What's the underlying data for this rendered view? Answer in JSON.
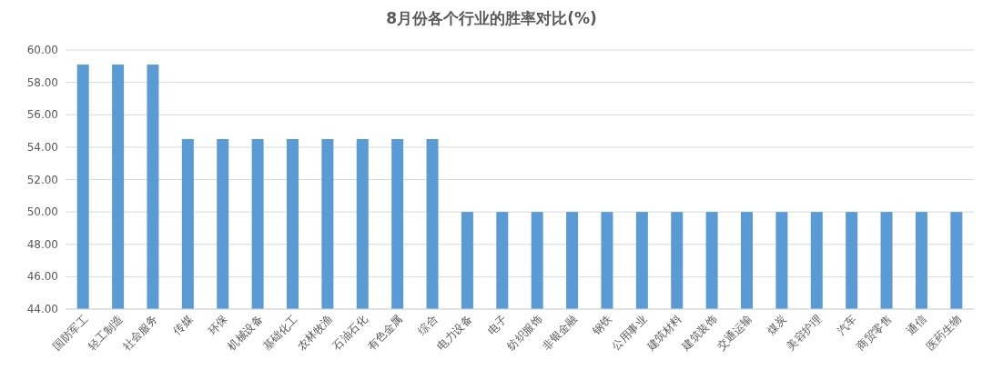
{
  "chart_data": {
    "type": "bar",
    "title": "8月份各个行业的胜率对比(%)",
    "categories": [
      "国防军工",
      "轻工制造",
      "社会服务",
      "传媒",
      "环保",
      "机械设备",
      "基础化工",
      "农林牧渔",
      "石油石化",
      "有色金属",
      "综合",
      "电力设备",
      "电子",
      "纺织服饰",
      "非银金融",
      "钢铁",
      "公用事业",
      "建筑材料",
      "建筑装饰",
      "交通运输",
      "煤炭",
      "美容护理",
      "汽车",
      "商贸零售",
      "通信",
      "医药生物"
    ],
    "values": [
      59.1,
      59.1,
      59.1,
      54.5,
      54.5,
      54.5,
      54.5,
      54.5,
      54.5,
      54.5,
      54.5,
      50.0,
      50.0,
      50.0,
      50.0,
      50.0,
      50.0,
      50.0,
      50.0,
      50.0,
      50.0,
      50.0,
      50.0,
      50.0,
      50.0,
      50.0
    ],
    "color": "#5b9bd5",
    "ylim": [
      44,
      60
    ],
    "yticks": [
      {
        "value": 44,
        "label": "44.00"
      },
      {
        "value": 46,
        "label": "46.00"
      },
      {
        "value": 48,
        "label": "48.00"
      },
      {
        "value": 50,
        "label": "50.00"
      },
      {
        "value": 52,
        "label": "52.00"
      },
      {
        "value": 54,
        "label": "54.00"
      },
      {
        "value": 56,
        "label": "56.00"
      },
      {
        "value": 58,
        "label": "58.00"
      },
      {
        "value": 60,
        "label": "60.00"
      }
    ],
    "grid": "y"
  }
}
